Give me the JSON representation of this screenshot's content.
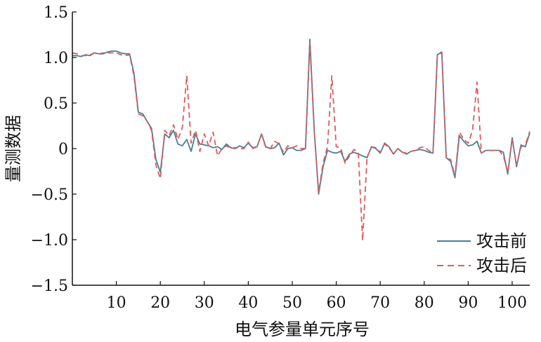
{
  "chart_data": {
    "type": "line",
    "xlabel": "电气参量单元序号",
    "ylabel": "量测数据",
    "xlim": [
      0,
      104
    ],
    "ylim": [
      -1.5,
      1.5
    ],
    "xticks": [
      10,
      20,
      30,
      40,
      50,
      60,
      70,
      80,
      90,
      100
    ],
    "yticks": [
      -1.5,
      -1.0,
      -0.5,
      0,
      0.5,
      1.0,
      1.5
    ],
    "ytick_labels": [
      "−1.5",
      "−1.0",
      "−0.5",
      "0",
      "0.5",
      "1.0",
      "1.5"
    ],
    "grid": false,
    "legend_position": "bottom-right",
    "series": [
      {
        "name": "攻击前",
        "color": "#4a7d96",
        "style": "solid",
        "x": [
          0,
          1,
          2,
          3,
          4,
          5,
          6,
          7,
          8,
          9,
          10,
          11,
          12,
          13,
          14,
          15,
          16,
          17,
          18,
          19,
          20,
          21,
          22,
          23,
          24,
          25,
          26,
          27,
          28,
          29,
          30,
          31,
          32,
          33,
          34,
          35,
          36,
          37,
          38,
          39,
          40,
          41,
          42,
          43,
          44,
          45,
          46,
          47,
          48,
          49,
          50,
          51,
          52,
          53,
          54,
          55,
          56,
          57,
          58,
          59,
          60,
          61,
          62,
          63,
          64,
          65,
          66,
          67,
          68,
          69,
          70,
          71,
          72,
          73,
          74,
          75,
          76,
          77,
          78,
          79,
          80,
          81,
          82,
          83,
          84,
          85,
          86,
          87,
          88,
          89,
          90,
          91,
          92,
          93,
          94,
          95,
          96,
          97,
          98,
          99,
          100,
          101,
          102,
          103,
          104
        ],
        "values": [
          1.02,
          1.02,
          1.01,
          1.03,
          1.02,
          1.05,
          1.04,
          1.04,
          1.06,
          1.07,
          1.07,
          1.05,
          1.04,
          1.04,
          0.83,
          0.4,
          0.38,
          0.3,
          0.22,
          -0.12,
          -0.26,
          0.16,
          0.12,
          0.2,
          0.05,
          0.03,
          0.1,
          -0.03,
          0.16,
          0.05,
          0.04,
          0.03,
          0.01,
          0.02,
          -0.01,
          0.05,
          0.01,
          0.0,
          0.03,
          0.01,
          0.06,
          0.01,
          0.02,
          0.16,
          0.02,
          0.0,
          0.01,
          0.06,
          -0.07,
          0.0,
          0.01,
          -0.02,
          -0.02,
          0.0,
          1.2,
          0.2,
          -0.5,
          -0.2,
          -0.02,
          -0.04,
          -0.05,
          -0.03,
          -0.14,
          -0.06,
          -0.04,
          -0.06,
          -0.08,
          -0.1,
          0.02,
          0.0,
          -0.05,
          0.06,
          0.02,
          -0.06,
          0.0,
          -0.04,
          -0.06,
          -0.03,
          -0.02,
          -0.01,
          -0.02,
          -0.04,
          -0.05,
          1.03,
          1.06,
          -0.1,
          -0.14,
          -0.32,
          0.14,
          0.08,
          0.03,
          0.04,
          0.08,
          -0.05,
          -0.02,
          -0.02,
          -0.02,
          -0.02,
          -0.04,
          -0.28,
          0.12,
          -0.2,
          0.04,
          0.02,
          0.17
        ]
      },
      {
        "name": "攻击后",
        "color": "#e05a5a",
        "style": "dashed",
        "x": [
          0,
          1,
          2,
          3,
          4,
          5,
          6,
          7,
          8,
          9,
          10,
          11,
          12,
          13,
          14,
          15,
          16,
          17,
          18,
          19,
          20,
          21,
          22,
          23,
          24,
          25,
          26,
          27,
          28,
          29,
          30,
          31,
          32,
          33,
          34,
          35,
          36,
          37,
          38,
          39,
          40,
          41,
          42,
          43,
          44,
          45,
          46,
          47,
          48,
          49,
          50,
          51,
          52,
          53,
          54,
          55,
          56,
          57,
          58,
          59,
          60,
          61,
          62,
          63,
          64,
          65,
          66,
          67,
          68,
          69,
          70,
          71,
          72,
          73,
          74,
          75,
          76,
          77,
          78,
          79,
          80,
          81,
          82,
          83,
          84,
          85,
          86,
          87,
          88,
          89,
          90,
          91,
          92,
          93,
          94,
          95,
          96,
          97,
          98,
          99,
          100,
          101,
          102,
          103,
          104
        ],
        "values": [
          1.05,
          1.04,
          1.02,
          1.02,
          1.03,
          1.05,
          1.04,
          1.05,
          1.05,
          1.05,
          1.05,
          1.03,
          1.02,
          1.03,
          0.8,
          0.38,
          0.36,
          0.3,
          0.2,
          -0.18,
          -0.33,
          0.2,
          0.14,
          0.26,
          0.1,
          0.23,
          0.8,
          0.06,
          0.2,
          -0.03,
          0.16,
          0.03,
          0.18,
          -0.08,
          0.0,
          0.03,
          0.0,
          0.01,
          0.0,
          0.0,
          0.07,
          0.0,
          0.02,
          0.16,
          0.01,
          0.0,
          0.08,
          0.05,
          -0.04,
          0.03,
          0.01,
          0.03,
          0.0,
          0.0,
          1.16,
          0.18,
          -0.48,
          -0.16,
          0.02,
          0.8,
          0.02,
          0.01,
          -0.16,
          -0.08,
          -0.01,
          -0.04,
          -1.01,
          -0.1,
          0.02,
          0.01,
          -0.04,
          0.05,
          0.01,
          -0.06,
          0.0,
          -0.04,
          -0.05,
          -0.03,
          -0.02,
          0.01,
          0.02,
          -0.02,
          -0.05,
          1.02,
          1.05,
          -0.1,
          -0.12,
          -0.3,
          0.18,
          0.1,
          0.06,
          0.2,
          0.73,
          -0.05,
          -0.02,
          -0.02,
          -0.02,
          -0.02,
          -0.08,
          -0.26,
          0.1,
          -0.18,
          0.02,
          0.04,
          0.19
        ]
      }
    ]
  }
}
